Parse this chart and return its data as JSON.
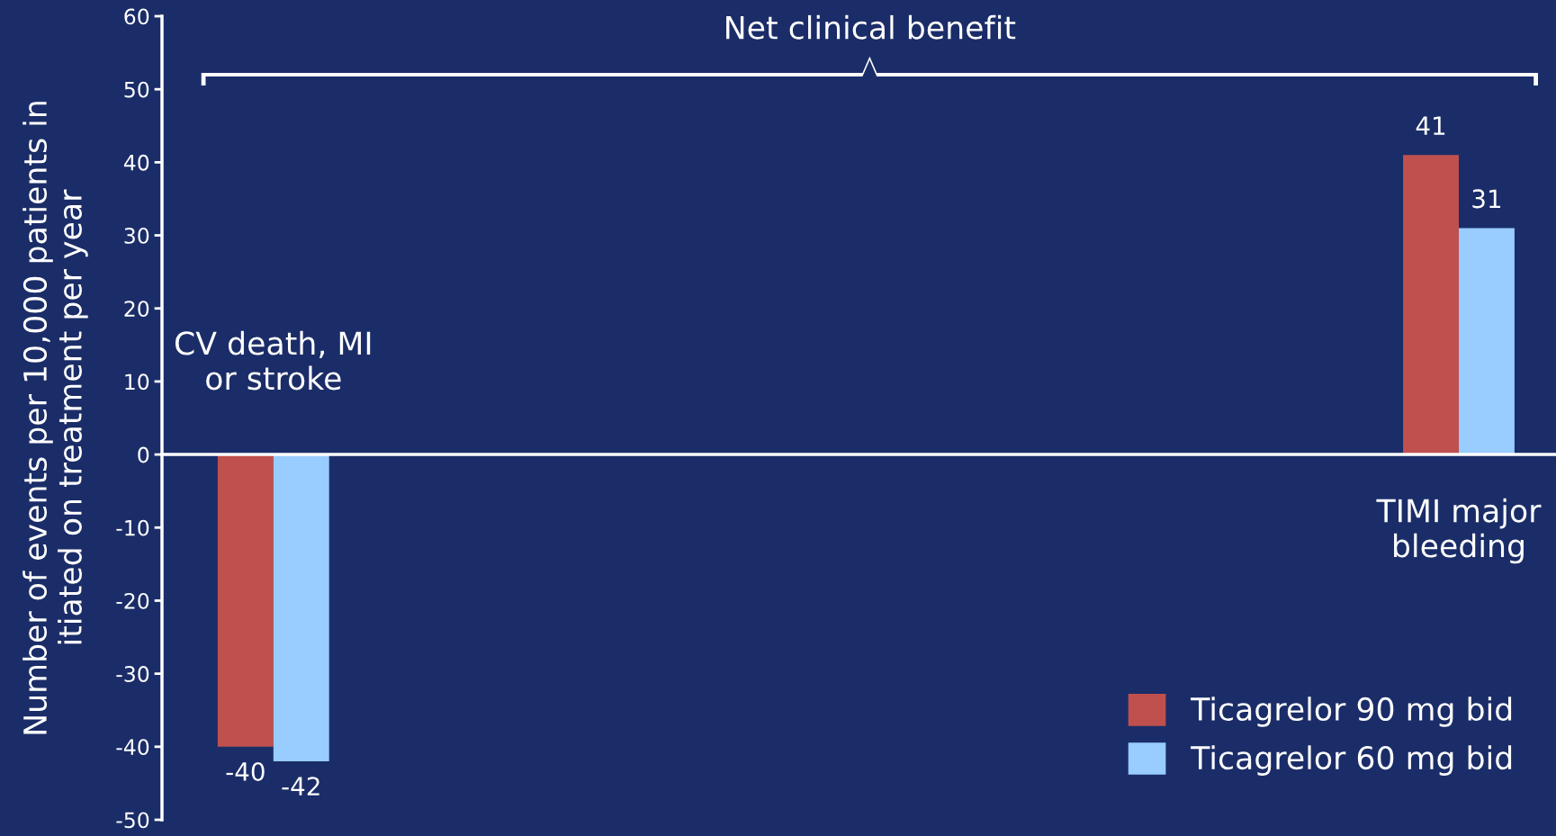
{
  "chart_data": {
    "type": "bar",
    "ylabel": "Number of events per 10,000 patients in\nitiated on treatment per year",
    "categories": [
      "CV death, MI\nor stroke",
      "TIMI major\nbleeding"
    ],
    "series": [
      {
        "name": "Ticagrelor 90 mg bid",
        "color": "#c0504d",
        "values": [
          -40,
          41
        ]
      },
      {
        "name": "Ticagrelor 60 mg bid",
        "color": "#99ccff",
        "values": [
          -42,
          31
        ]
      }
    ],
    "ylim": [
      -50,
      60
    ],
    "yticks": [
      -50,
      -40,
      -30,
      -20,
      -10,
      0,
      10,
      20,
      30,
      40,
      50,
      60
    ],
    "data_labels": true,
    "legend": "bottom right",
    "annotations": [
      "Net clinical benefit"
    ]
  }
}
